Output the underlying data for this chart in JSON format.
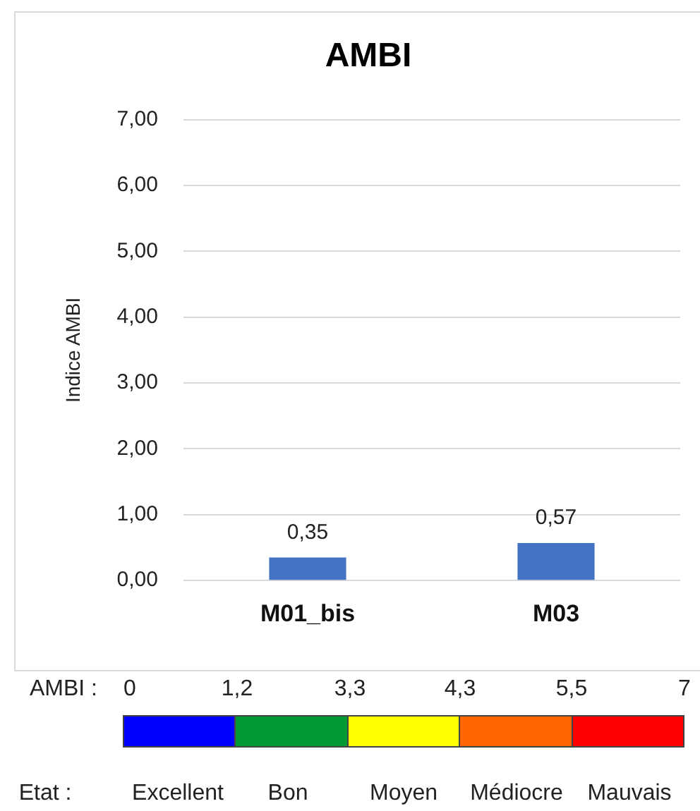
{
  "chart_data": {
    "type": "bar",
    "title": "AMBI",
    "ylabel": "Indice AMBI",
    "categories": [
      "M01_bis",
      "M03"
    ],
    "values": [
      0.35,
      0.57
    ],
    "color": "#4472c4",
    "value_labels": [
      "0,35",
      "0,57"
    ],
    "ylim": [
      0,
      7
    ],
    "yticks": [
      {
        "value": 0,
        "label": "0,00"
      },
      {
        "value": 1,
        "label": "1,00"
      },
      {
        "value": 2,
        "label": "2,00"
      },
      {
        "value": 3,
        "label": "3,00"
      },
      {
        "value": 4,
        "label": "4,00"
      },
      {
        "value": 5,
        "label": "5,00"
      },
      {
        "value": 6,
        "label": "6,00"
      },
      {
        "value": 7,
        "label": "7,00"
      }
    ],
    "grid": "y",
    "legend": false,
    "annotations": [
      "AMBI :",
      "0",
      "1,2",
      "3,3",
      "4,3",
      "5,5",
      "7",
      "Etat :",
      "Excellent",
      "Bon",
      "Moyen",
      "Médiocre",
      "Mauvais"
    ]
  }
}
